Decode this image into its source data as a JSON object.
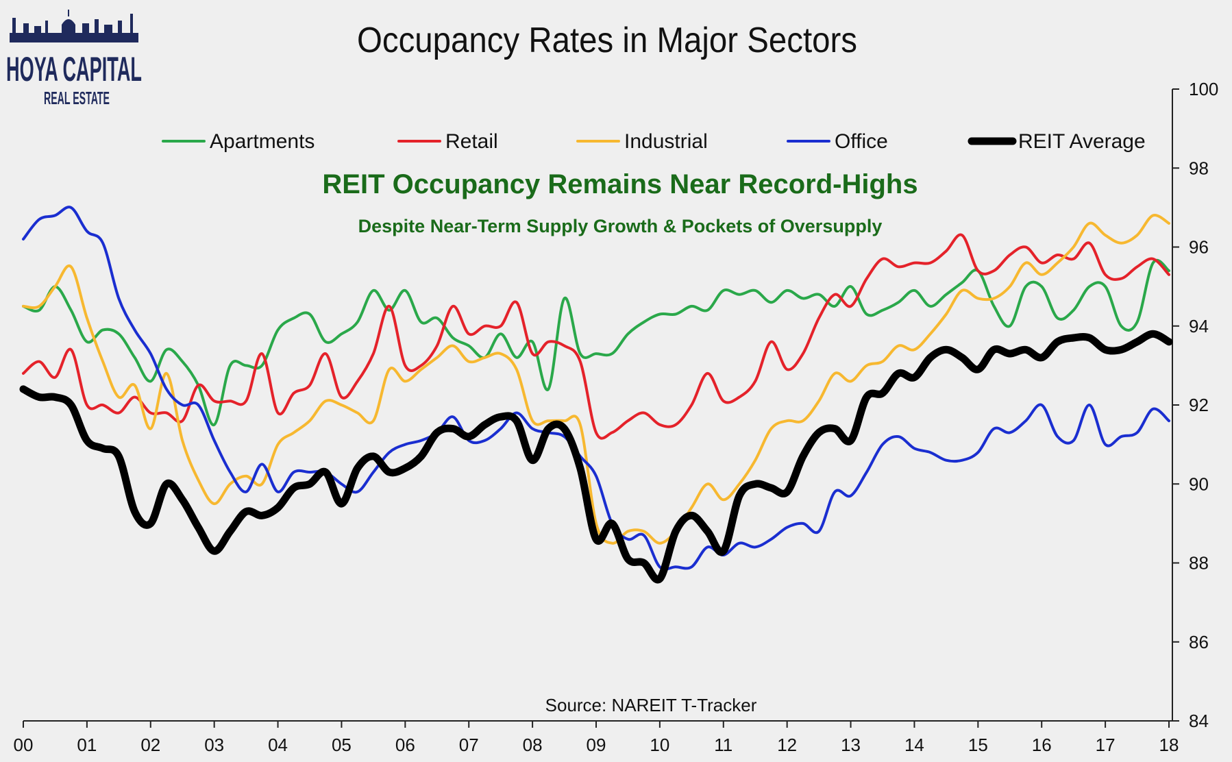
{
  "logo": {
    "line1": "HOYA CAPITAL",
    "line2": "REAL ESTATE"
  },
  "chart_data": {
    "type": "line",
    "title": "Occupancy Rates in Major Sectors",
    "headline": "REIT Occupancy Remains Near Record-Highs",
    "subheadline": "Despite Near-Term Supply Growth & Pockets of Oversupply",
    "source": "Source: NAREIT T-Tracker",
    "x_tick_labels": [
      "00",
      "01",
      "02",
      "03",
      "04",
      "05",
      "06",
      "07",
      "08",
      "09",
      "10",
      "11",
      "12",
      "13",
      "14",
      "15",
      "16",
      "17",
      "18"
    ],
    "y_ticks": [
      84,
      86,
      88,
      90,
      92,
      94,
      96,
      98,
      100
    ],
    "xlim": [
      2000,
      2018
    ],
    "ylim": [
      84,
      100
    ],
    "y_axis_position": "right",
    "grid": false,
    "legend_position": "top",
    "x": [
      2000,
      2000.25,
      2000.5,
      2000.75,
      2001,
      2001.25,
      2001.5,
      2001.75,
      2002,
      2002.25,
      2002.5,
      2002.75,
      2003,
      2003.25,
      2003.5,
      2003.75,
      2004,
      2004.25,
      2004.5,
      2004.75,
      2005,
      2005.25,
      2005.5,
      2005.75,
      2006,
      2006.25,
      2006.5,
      2006.75,
      2007,
      2007.25,
      2007.5,
      2007.75,
      2008,
      2008.25,
      2008.5,
      2008.75,
      2009,
      2009.25,
      2009.5,
      2009.75,
      2010,
      2010.25,
      2010.5,
      2010.75,
      2011,
      2011.25,
      2011.5,
      2011.75,
      2012,
      2012.25,
      2012.5,
      2012.75,
      2013,
      2013.25,
      2013.5,
      2013.75,
      2014,
      2014.25,
      2014.5,
      2014.75,
      2015,
      2015.25,
      2015.5,
      2015.75,
      2016,
      2016.25,
      2016.5,
      2016.75,
      2017,
      2017.25,
      2017.5,
      2017.75,
      2018
    ],
    "series": [
      {
        "name": "Apartments",
        "color": "#2aa84a",
        "width": 4,
        "values": [
          94.5,
          94.4,
          95.0,
          94.4,
          93.6,
          93.9,
          93.8,
          93.2,
          92.6,
          93.4,
          93.1,
          92.5,
          91.5,
          93.0,
          93.0,
          93.0,
          93.9,
          94.2,
          94.3,
          93.6,
          93.8,
          94.1,
          94.9,
          94.4,
          94.9,
          94.1,
          94.2,
          93.7,
          93.5,
          93.2,
          93.8,
          93.2,
          93.6,
          92.4,
          94.7,
          93.3,
          93.3,
          93.3,
          93.8,
          94.1,
          94.3,
          94.3,
          94.5,
          94.4,
          94.9,
          94.8,
          94.9,
          94.6,
          94.9,
          94.7,
          94.8,
          94.5,
          95.0,
          94.3,
          94.4,
          94.6,
          94.9,
          94.5,
          94.8,
          95.1,
          95.4,
          94.5,
          94.0,
          95.0,
          95.0,
          94.2,
          94.4,
          95.0,
          95.0,
          94.0,
          94.1,
          95.6,
          95.4
        ]
      },
      {
        "name": "Retail",
        "color": "#e4222a",
        "width": 4,
        "values": [
          92.8,
          93.1,
          92.7,
          93.4,
          92.0,
          92.0,
          91.8,
          92.2,
          91.8,
          91.8,
          91.6,
          92.5,
          92.1,
          92.1,
          92.1,
          93.3,
          91.8,
          92.3,
          92.5,
          93.3,
          92.2,
          92.6,
          93.3,
          94.5,
          93.0,
          93.0,
          93.5,
          94.5,
          93.8,
          94.0,
          94.0,
          94.6,
          93.3,
          93.6,
          93.5,
          93.1,
          91.3,
          91.3,
          91.6,
          91.8,
          91.5,
          91.5,
          92.0,
          92.8,
          92.1,
          92.2,
          92.6,
          93.6,
          92.9,
          93.3,
          94.2,
          94.8,
          94.5,
          95.2,
          95.7,
          95.5,
          95.6,
          95.6,
          95.9,
          96.3,
          95.4,
          95.4,
          95.8,
          96.0,
          95.6,
          95.8,
          95.7,
          96.1,
          95.3,
          95.2,
          95.5,
          95.7,
          95.3
        ]
      },
      {
        "name": "Industrial",
        "color": "#f7b830",
        "width": 4,
        "values": [
          94.5,
          94.5,
          95.0,
          95.5,
          94.2,
          93.1,
          92.2,
          92.5,
          91.4,
          92.8,
          91.1,
          90.1,
          89.5,
          90.0,
          90.2,
          90.0,
          91.0,
          91.3,
          91.6,
          92.1,
          92.0,
          91.8,
          91.6,
          92.9,
          92.6,
          92.9,
          93.2,
          93.5,
          93.1,
          93.2,
          93.3,
          92.9,
          91.6,
          91.6,
          91.6,
          91.5,
          89.0,
          88.5,
          88.8,
          88.8,
          88.5,
          88.8,
          89.4,
          90.0,
          89.6,
          90.0,
          90.6,
          91.4,
          91.6,
          91.6,
          92.1,
          92.8,
          92.6,
          93.0,
          93.1,
          93.5,
          93.4,
          93.8,
          94.3,
          94.9,
          94.7,
          94.7,
          95.0,
          95.6,
          95.3,
          95.6,
          96.0,
          96.6,
          96.3,
          96.1,
          96.3,
          96.8,
          96.6
        ]
      },
      {
        "name": "Office",
        "color": "#1a2ed0",
        "width": 4,
        "values": [
          96.2,
          96.7,
          96.8,
          97.0,
          96.4,
          96.1,
          94.7,
          93.9,
          93.3,
          92.4,
          92.0,
          92.0,
          91.1,
          90.3,
          89.8,
          90.5,
          89.8,
          90.3,
          90.3,
          90.3,
          90.0,
          89.8,
          90.3,
          90.8,
          91.0,
          91.1,
          91.3,
          91.7,
          91.1,
          91.1,
          91.4,
          91.8,
          91.4,
          91.3,
          91.2,
          90.7,
          90.2,
          89.0,
          88.6,
          88.7,
          87.9,
          87.9,
          87.9,
          88.4,
          88.2,
          88.5,
          88.4,
          88.6,
          88.9,
          89.0,
          88.8,
          89.8,
          89.7,
          90.3,
          91.0,
          91.2,
          90.9,
          90.8,
          90.6,
          90.6,
          90.8,
          91.4,
          91.3,
          91.6,
          92.0,
          91.2,
          91.1,
          92.0,
          91.0,
          91.2,
          91.3,
          91.9,
          91.6
        ]
      },
      {
        "name": "REIT Average",
        "color": "#000000",
        "width": 11,
        "values": [
          92.4,
          92.2,
          92.2,
          92.0,
          91.1,
          90.9,
          90.7,
          89.3,
          89.0,
          90.0,
          89.6,
          88.9,
          88.3,
          88.8,
          89.3,
          89.2,
          89.4,
          89.9,
          90.0,
          90.3,
          89.5,
          90.4,
          90.7,
          90.3,
          90.4,
          90.7,
          91.3,
          91.4,
          91.2,
          91.5,
          91.7,
          91.6,
          90.6,
          91.4,
          91.4,
          90.4,
          88.6,
          89.0,
          88.1,
          88.0,
          87.6,
          88.8,
          89.2,
          88.8,
          88.3,
          89.7,
          90.0,
          89.9,
          89.8,
          90.7,
          91.3,
          91.4,
          91.1,
          92.2,
          92.3,
          92.8,
          92.7,
          93.2,
          93.4,
          93.2,
          92.9,
          93.4,
          93.3,
          93.4,
          93.2,
          93.6,
          93.7,
          93.7,
          93.4,
          93.4,
          93.6,
          93.8,
          93.6
        ]
      }
    ]
  }
}
